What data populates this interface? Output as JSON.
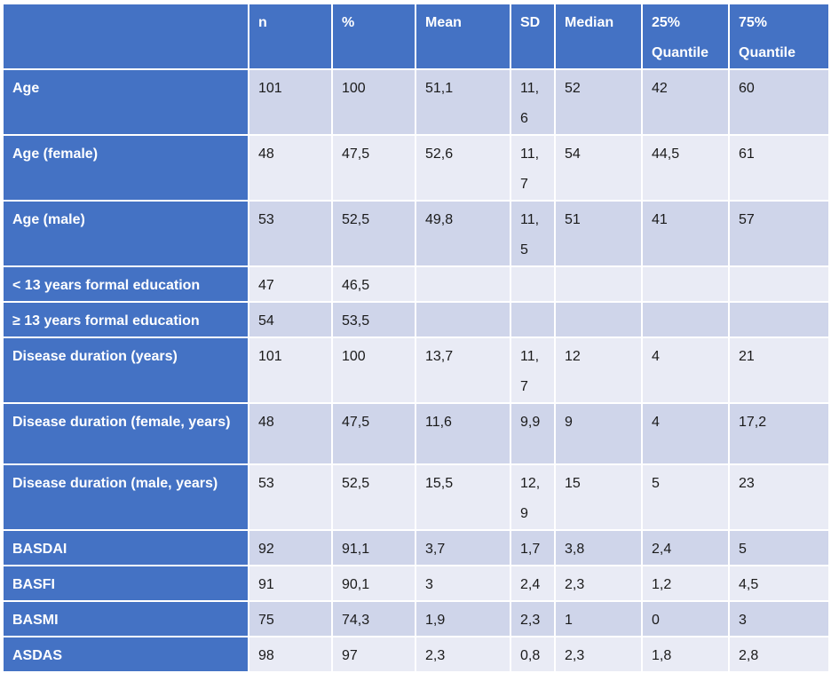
{
  "table": {
    "header": [
      "n",
      "%",
      "Mean",
      "SD",
      "Median",
      "25% Quantile",
      "75% Quantile"
    ],
    "rows": [
      {
        "label": "Age",
        "values": [
          "101",
          "100",
          "51,1",
          "11,6",
          "52",
          "42",
          "60"
        ]
      },
      {
        "label": "Age (female)",
        "values": [
          "48",
          "47,5",
          "52,6",
          "11,7",
          "54",
          "44,5",
          "61"
        ]
      },
      {
        "label": "Age (male)",
        "values": [
          "53",
          "52,5",
          "49,8",
          "11,5",
          "51",
          "41",
          "57"
        ]
      },
      {
        "label": "< 13 years formal education",
        "values": [
          "47",
          "46,5"
        ]
      },
      {
        "label": "≥ 13 years formal education",
        "values": [
          "54",
          "53,5"
        ]
      },
      {
        "label": "Disease duration (years)",
        "values": [
          "101",
          "100",
          "13,7",
          "11,7",
          "12",
          "4",
          "21"
        ]
      },
      {
        "label": "Disease duration (female, years)",
        "values": [
          "48",
          "47,5",
          "11,6",
          "9,9",
          "9",
          "4",
          "17,2"
        ]
      },
      {
        "label": "Disease duration (male, years)",
        "values": [
          "53",
          "52,5",
          "15,5",
          "12,9",
          "15",
          "5",
          "23"
        ]
      },
      {
        "label": "BASDAI",
        "values": [
          "92",
          "91,1",
          "3,7",
          "1,7",
          "3,8",
          "2,4",
          "5"
        ]
      },
      {
        "label": "BASFI",
        "values": [
          "91",
          "90,1",
          "3",
          "2,4",
          "2,3",
          "1,2",
          "4,5"
        ]
      },
      {
        "label": "BASMI",
        "values": [
          "75",
          "74,3",
          "1,9",
          "2,3",
          "1",
          "0",
          "3"
        ]
      },
      {
        "label": "ASDAS",
        "values": [
          "98",
          "97",
          "2,3",
          "0,8",
          "2,3",
          "1,8",
          "2,8"
        ]
      }
    ]
  }
}
